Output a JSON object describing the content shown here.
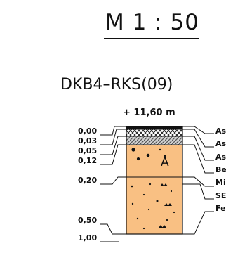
{
  "scale": {
    "text": "M 1 : 50"
  },
  "profile": {
    "title": "DKB4–RKS(09)",
    "elevation": "+ 11,60  m",
    "depths": [
      "0,00",
      "0,03",
      "0,05",
      "0,12",
      "0,20",
      "0,50",
      "1,00"
    ],
    "layer_symbol": "A",
    "side_labels": [
      "As",
      "As",
      "As",
      "Be",
      "Mi",
      "SE",
      "Fe"
    ],
    "colors": {
      "fill": "#f9c083",
      "line": "#111111",
      "hatch": "#111111"
    }
  }
}
